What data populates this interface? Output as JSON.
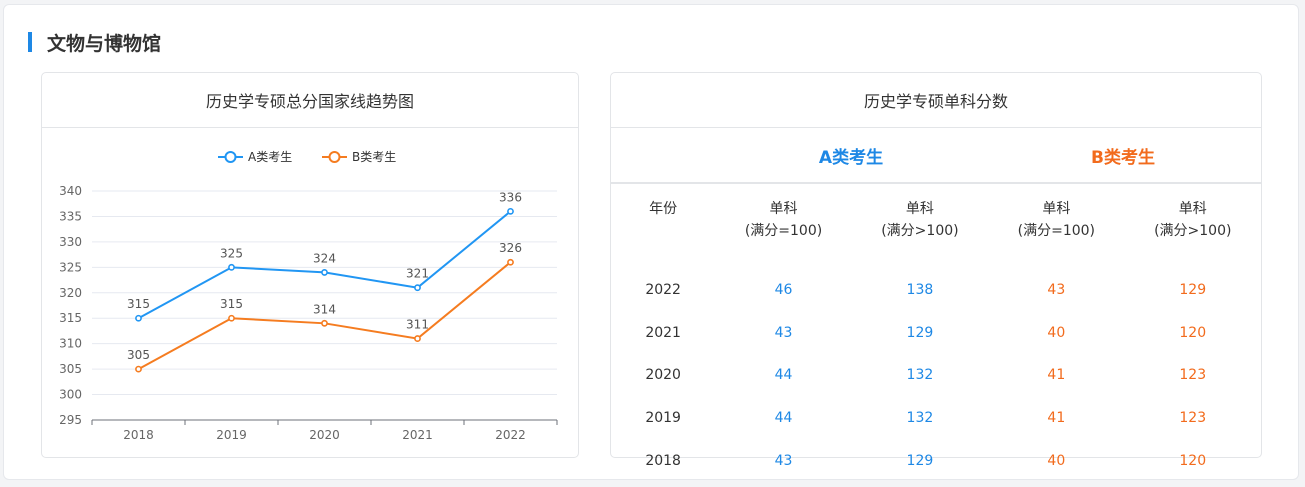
{
  "section": {
    "title": "文物与博物馆"
  },
  "chart_card": {
    "title": "历史学专硕总分国家线趋势图"
  },
  "chart_data": {
    "type": "line",
    "title": "历史学专硕总分国家线趋势图",
    "categories": [
      "2018",
      "2019",
      "2020",
      "2021",
      "2022"
    ],
    "series": [
      {
        "name": "A类考生",
        "values": [
          315,
          325,
          324,
          321,
          336
        ],
        "color": "#2196f3"
      },
      {
        "name": "B类考生",
        "values": [
          305,
          315,
          314,
          311,
          326
        ],
        "color": "#f57c20"
      }
    ],
    "ylim": [
      295,
      340
    ],
    "yticks": [
      "295",
      "300",
      "305",
      "310",
      "315",
      "320",
      "325",
      "330",
      "335",
      "340"
    ],
    "grid": true,
    "legend_position": "top-center",
    "xlabel": "",
    "ylabel": ""
  },
  "table_card": {
    "title": "历史学专硕单科分数",
    "group_a": "A类考生",
    "group_b": "B类考生",
    "headers": [
      {
        "line1": "年份",
        "line2": ""
      },
      {
        "line1": "单科",
        "line2": "(满分=100)"
      },
      {
        "line1": "单科",
        "line2": "(满分>100)"
      },
      {
        "line1": "单科",
        "line2": "(满分=100)"
      },
      {
        "line1": "单科",
        "line2": "(满分>100)"
      }
    ],
    "rows": [
      [
        "2022",
        "46",
        "138",
        "43",
        "129"
      ],
      [
        "2021",
        "43",
        "129",
        "40",
        "120"
      ],
      [
        "2020",
        "44",
        "132",
        "41",
        "123"
      ],
      [
        "2019",
        "44",
        "132",
        "41",
        "123"
      ],
      [
        "2018",
        "43",
        "129",
        "40",
        "120"
      ]
    ],
    "colors": {
      "group_a": "#1e88e5",
      "group_b": "#f26b1d"
    }
  }
}
